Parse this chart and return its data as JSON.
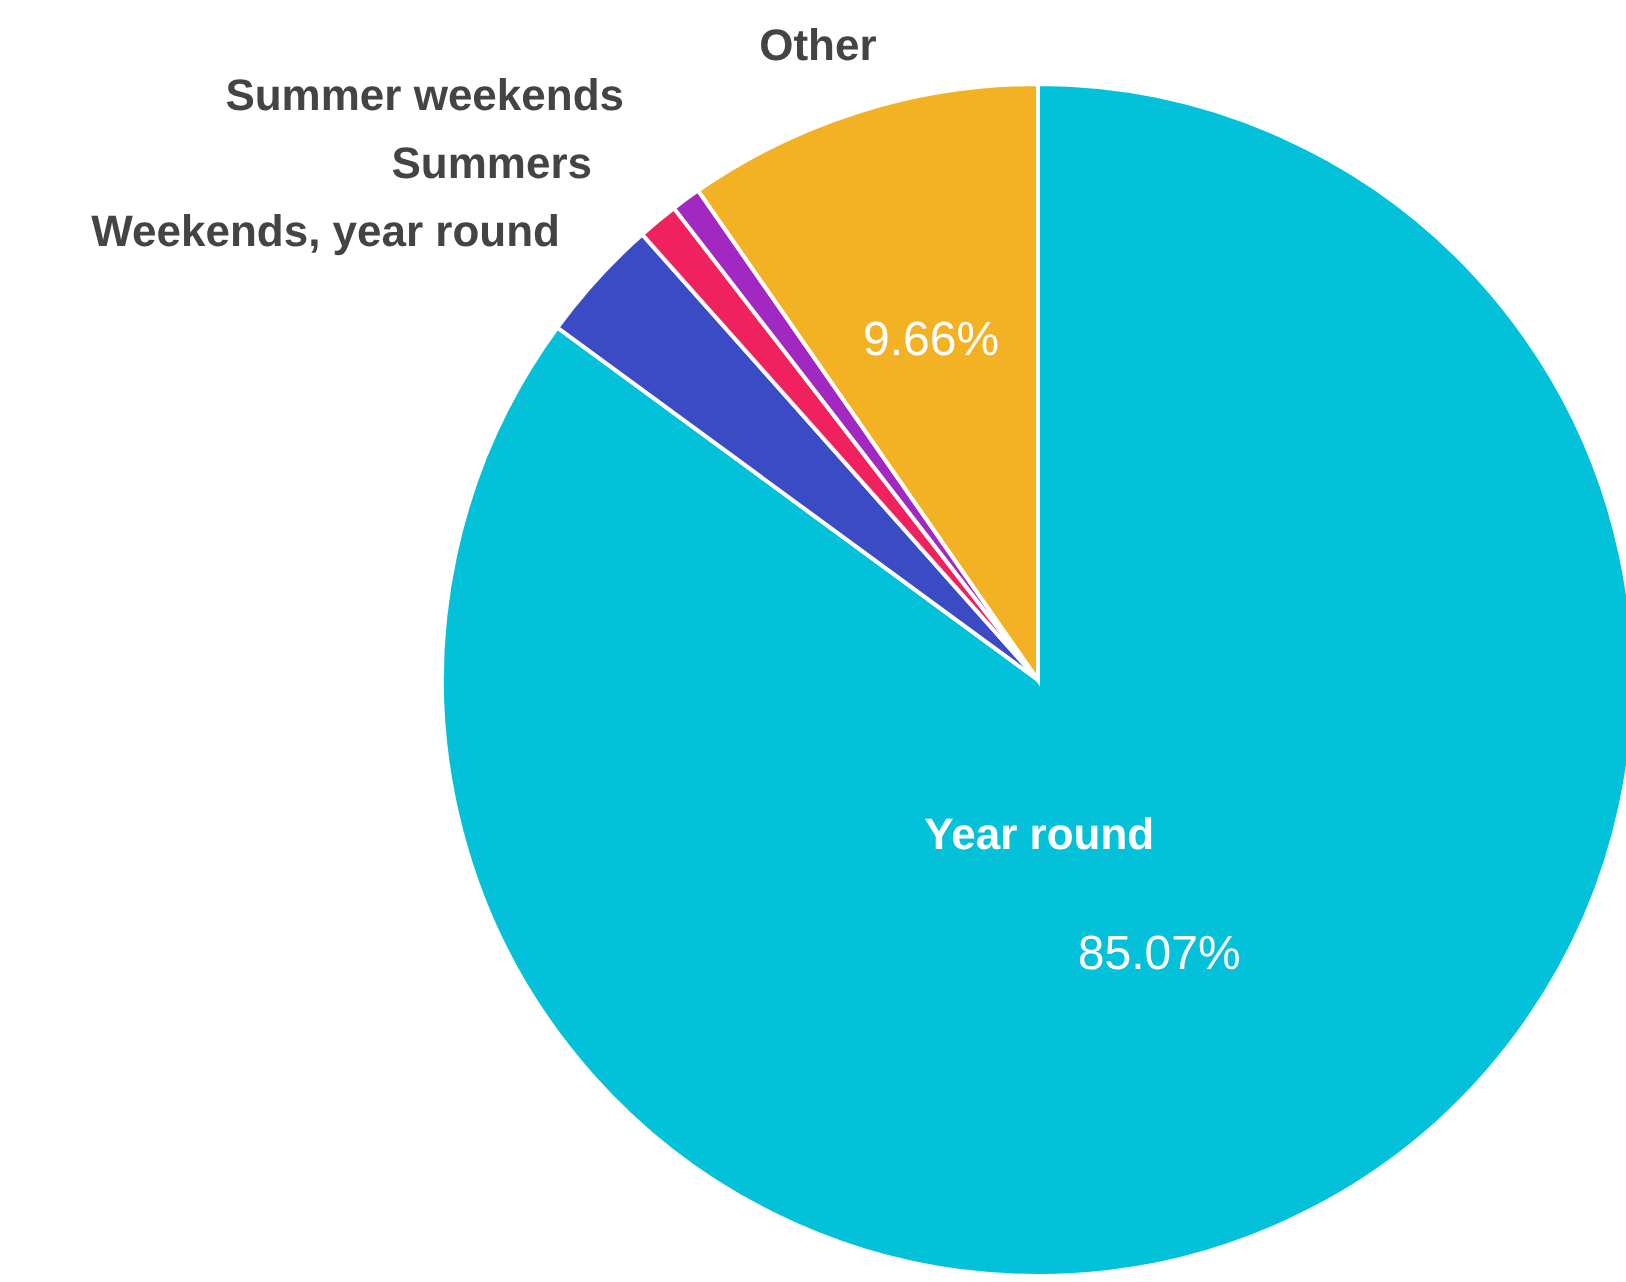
{
  "chart_data": {
    "type": "pie",
    "categories": [
      "Year round",
      "Weekends, year round",
      "Summers",
      "Summer weekends",
      "Other"
    ],
    "values": [
      85.07,
      3.37,
      1.1,
      0.8,
      9.66
    ],
    "colors": [
      "#04c1da",
      "#3a4bc4",
      "#f0215f",
      "#a128c0",
      "#f3b124"
    ],
    "value_labels": [
      "85.07%",
      null,
      null,
      null,
      "9.66%"
    ],
    "legend": false
  }
}
